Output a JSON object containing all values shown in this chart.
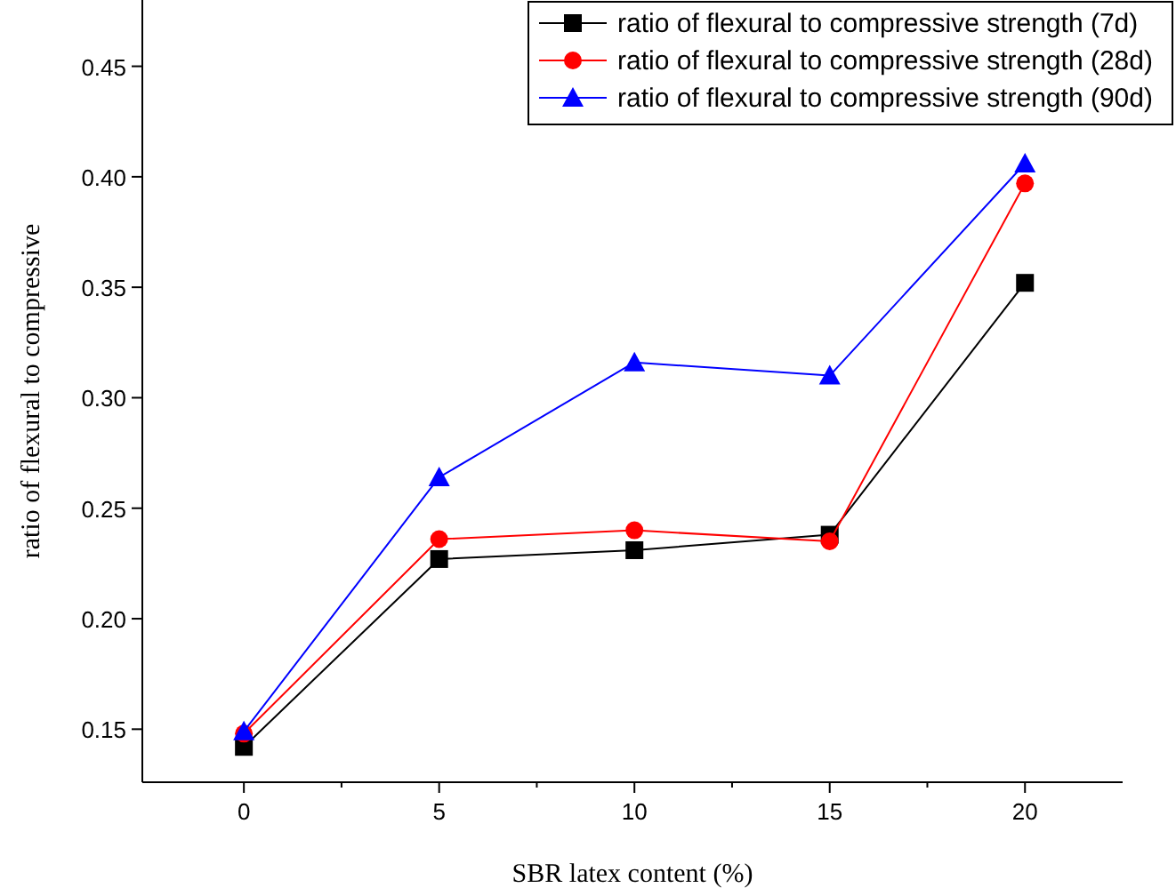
{
  "chart_data": {
    "type": "line",
    "xlabel": "SBR latex content (%)",
    "ylabel": "ratio of flexural to compressive",
    "x": [
      0,
      5,
      10,
      15,
      20
    ],
    "series": [
      {
        "name": "ratio of flexural to compressive strength (7d)",
        "color": "#000000",
        "marker": "square",
        "values": [
          0.142,
          0.227,
          0.231,
          0.238,
          0.352
        ]
      },
      {
        "name": "ratio of flexural to compressive strength (28d)",
        "color": "#ff0000",
        "marker": "circle",
        "values": [
          0.148,
          0.236,
          0.24,
          0.235,
          0.397
        ]
      },
      {
        "name": "ratio of flexural to compressive strength (90d)",
        "color": "#0000ff",
        "marker": "triangle",
        "values": [
          0.149,
          0.264,
          0.316,
          0.31,
          0.406
        ]
      }
    ],
    "xlim": [
      -2.6,
      22.5
    ],
    "xticks": [
      0,
      5,
      10,
      15,
      20
    ],
    "ylim": [
      0.126,
      0.48
    ],
    "yticks": [
      {
        "value": 0.15,
        "label": "0.15"
      },
      {
        "value": 0.2,
        "label": "0.20"
      },
      {
        "value": 0.25,
        "label": "0.25"
      },
      {
        "value": 0.3,
        "label": "0.30"
      },
      {
        "value": 0.35,
        "label": "0.35"
      },
      {
        "value": 0.4,
        "label": "0.40"
      },
      {
        "value": 0.45,
        "label": "0.45"
      }
    ],
    "grid": false,
    "legend": "top right",
    "line_style": "solid"
  }
}
